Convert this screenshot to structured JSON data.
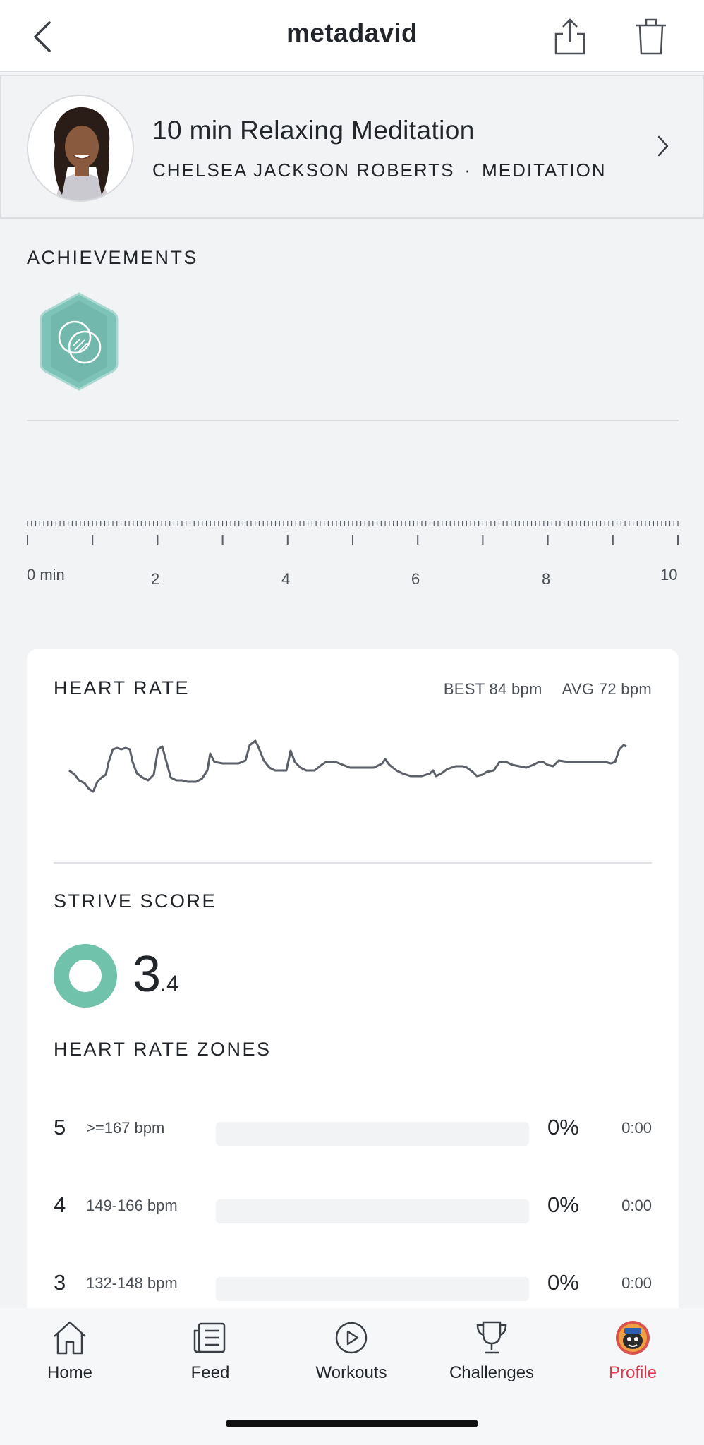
{
  "header": {
    "title": "metadavid",
    "back_icon": "chevron-left-icon",
    "share_icon": "share-icon",
    "delete_icon": "trash-icon"
  },
  "class": {
    "name": "10 min Relaxing Meditation",
    "instructor": "CHELSEA JACKSON ROBERTS",
    "separator": "·",
    "category": "MEDITATION"
  },
  "achievements": {
    "label": "ACHIEVEMENTS",
    "badges": [
      {
        "icon": "meditation-badge-icon",
        "color": "#7ec3b8"
      }
    ]
  },
  "timeline": {
    "labels": [
      "0 min",
      "2",
      "4",
      "6",
      "8",
      "10"
    ]
  },
  "heart_rate": {
    "label": "HEART RATE",
    "best": "BEST 84 bpm",
    "avg": "AVG 72 bpm",
    "line_color": "#5a5f68"
  },
  "strive": {
    "label": "STRIVE SCORE",
    "score_int": "3",
    "score_dec": ".4",
    "ring_color": "#70c2ab"
  },
  "zones": {
    "label": "HEART RATE ZONES",
    "rows": [
      {
        "zone": "5",
        "range": ">=167 bpm",
        "percent": "0%",
        "time": "0:00",
        "fill": 0
      },
      {
        "zone": "4",
        "range": "149-166 bpm",
        "percent": "0%",
        "time": "0:00",
        "fill": 0
      },
      {
        "zone": "3",
        "range": "132-148 bpm",
        "percent": "0%",
        "time": "0:00",
        "fill": 0
      }
    ]
  },
  "nav": {
    "tabs": [
      {
        "label": "Home",
        "icon": "home-icon"
      },
      {
        "label": "Feed",
        "icon": "feed-icon"
      },
      {
        "label": "Workouts",
        "icon": "play-circle-icon"
      },
      {
        "label": "Challenges",
        "icon": "trophy-icon"
      },
      {
        "label": "Profile",
        "icon": "avatar-icon",
        "active": true
      }
    ],
    "active_color": "#e0394c"
  }
}
